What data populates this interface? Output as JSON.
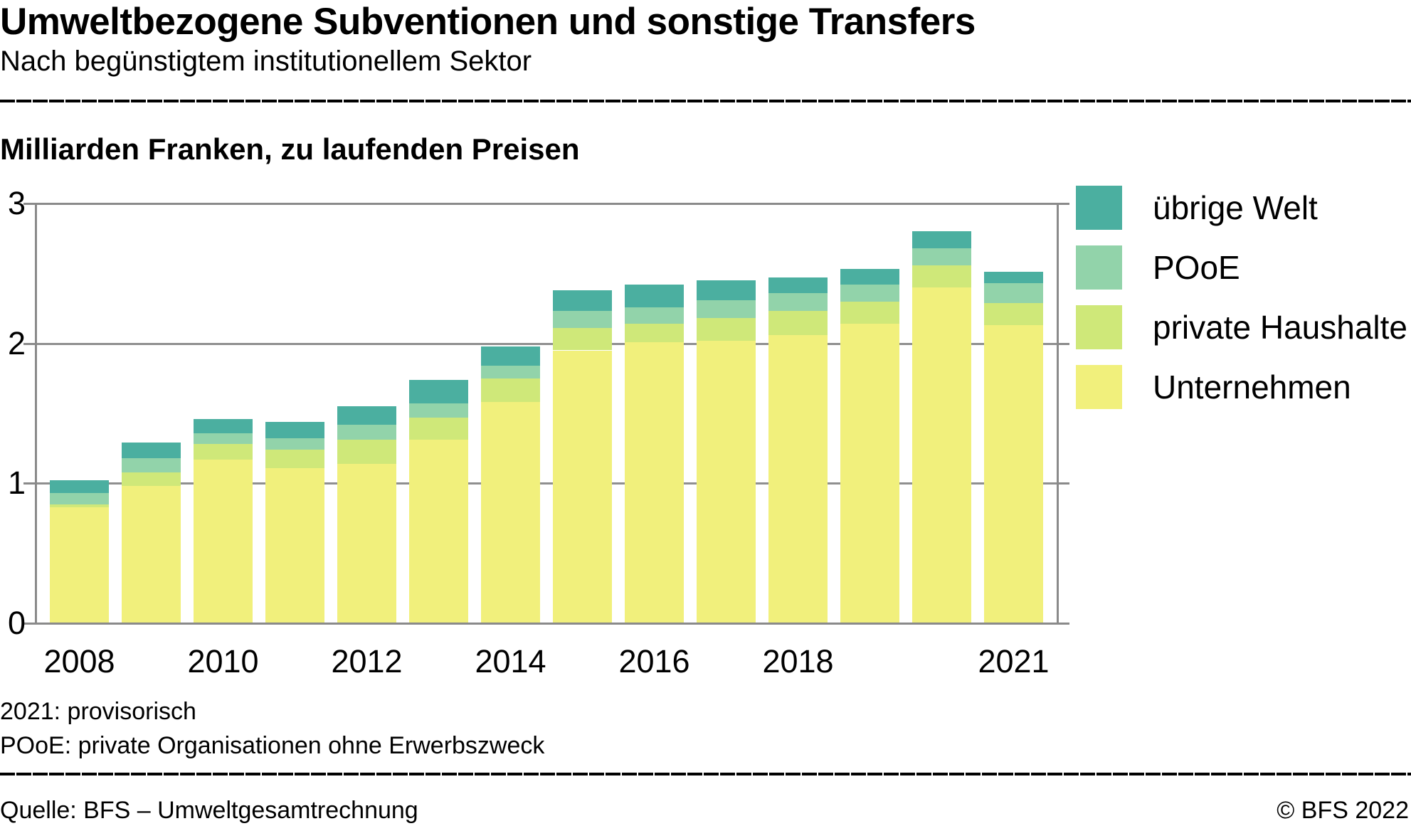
{
  "header": {
    "title": "Umweltbezogene Subventionen und sonstige Transfers",
    "subtitle": "Nach begünstigtem institutionellem Sektor"
  },
  "chart": {
    "axis_title": "Milliarden Franken, zu laufenden Preisen"
  },
  "legend": {
    "position": "right",
    "items": [
      {
        "label": "übrige Welt",
        "color": "#4bafa0"
      },
      {
        "label": "POoE",
        "color": "#92d3aa"
      },
      {
        "label": "private Haushalte",
        "color": "#cfe879"
      },
      {
        "label": "Unternehmen",
        "color": "#f1f07c"
      }
    ]
  },
  "chart_data": {
    "type": "bar",
    "stacked": true,
    "title": "Milliarden Franken, zu laufenden Preisen",
    "xlabel": "",
    "ylabel": "Milliarden Franken",
    "ylim": [
      0,
      3
    ],
    "yticks": [
      0,
      1,
      2,
      3
    ],
    "grid": true,
    "legend_position": "right",
    "categories": [
      "2008",
      "2009",
      "2010",
      "2011",
      "2012",
      "2013",
      "2014",
      "2015",
      "2016",
      "2017",
      "2018",
      "2019",
      "2020",
      "2021"
    ],
    "x_tick_labels": [
      "2008",
      "2010",
      "2012",
      "2014",
      "2016",
      "2018",
      "2021"
    ],
    "series": [
      {
        "name": "Unternehmen",
        "color": "#f1f07c",
        "values": [
          0.83,
          0.98,
          1.17,
          1.11,
          1.14,
          1.31,
          1.58,
          1.95,
          2.01,
          2.02,
          2.06,
          2.14,
          2.4,
          2.13
        ]
      },
      {
        "name": "private Haushalte",
        "color": "#cfe879",
        "values": [
          0.02,
          0.1,
          0.11,
          0.13,
          0.17,
          0.16,
          0.17,
          0.16,
          0.13,
          0.16,
          0.17,
          0.16,
          0.16,
          0.16
        ]
      },
      {
        "name": "POoE",
        "color": "#92d3aa",
        "values": [
          0.08,
          0.1,
          0.08,
          0.08,
          0.11,
          0.1,
          0.09,
          0.12,
          0.12,
          0.13,
          0.13,
          0.12,
          0.12,
          0.14
        ]
      },
      {
        "name": "übrige Welt",
        "color": "#4bafa0",
        "values": [
          0.09,
          0.11,
          0.1,
          0.12,
          0.13,
          0.17,
          0.14,
          0.15,
          0.16,
          0.14,
          0.11,
          0.11,
          0.12,
          0.08
        ]
      }
    ],
    "totals": [
      1.02,
      1.29,
      1.46,
      1.44,
      1.55,
      1.74,
      1.98,
      2.38,
      2.42,
      2.45,
      2.47,
      2.53,
      2.8,
      2.51
    ]
  },
  "footnotes": [
    "2021: provisorisch",
    "POoE: private Organisationen ohne Erwerbszweck"
  ],
  "footer": {
    "source": "Quelle: BFS – Umweltgesamtrechnung",
    "copyright": "© BFS 2022"
  }
}
